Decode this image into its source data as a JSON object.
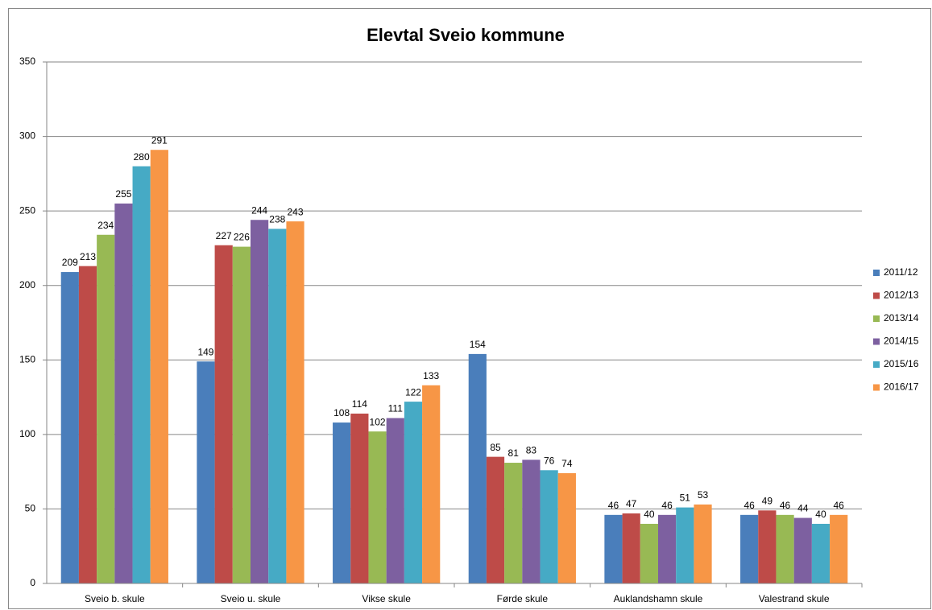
{
  "chart_data": {
    "type": "bar",
    "title": "Elevtal Sveio kommune",
    "categories": [
      "Sveio b. skule",
      "Sveio u. skule",
      "Vikse skule",
      "Førde skule",
      "Auklandshamn skule",
      "Valestrand skule"
    ],
    "series": [
      {
        "name": "2011/12",
        "color": "#4a7ebb",
        "values": [
          209,
          149,
          108,
          154,
          46,
          46
        ]
      },
      {
        "name": "2012/13",
        "color": "#be4b48",
        "values": [
          213,
          227,
          114,
          85,
          47,
          49
        ]
      },
      {
        "name": "2013/14",
        "color": "#98b954",
        "values": [
          234,
          226,
          102,
          81,
          40,
          46
        ]
      },
      {
        "name": "2014/15",
        "color": "#7d60a0",
        "values": [
          255,
          244,
          111,
          83,
          46,
          44
        ]
      },
      {
        "name": "2015/16",
        "color": "#46aac5",
        "values": [
          280,
          238,
          122,
          76,
          51,
          40
        ]
      },
      {
        "name": "2016/17",
        "color": "#f79646",
        "values": [
          291,
          243,
          133,
          74,
          53,
          46
        ]
      }
    ],
    "ylim": [
      0,
      350
    ],
    "yticks": [
      0,
      50,
      100,
      150,
      200,
      250,
      300,
      350
    ],
    "grid": true,
    "legend": "right"
  }
}
